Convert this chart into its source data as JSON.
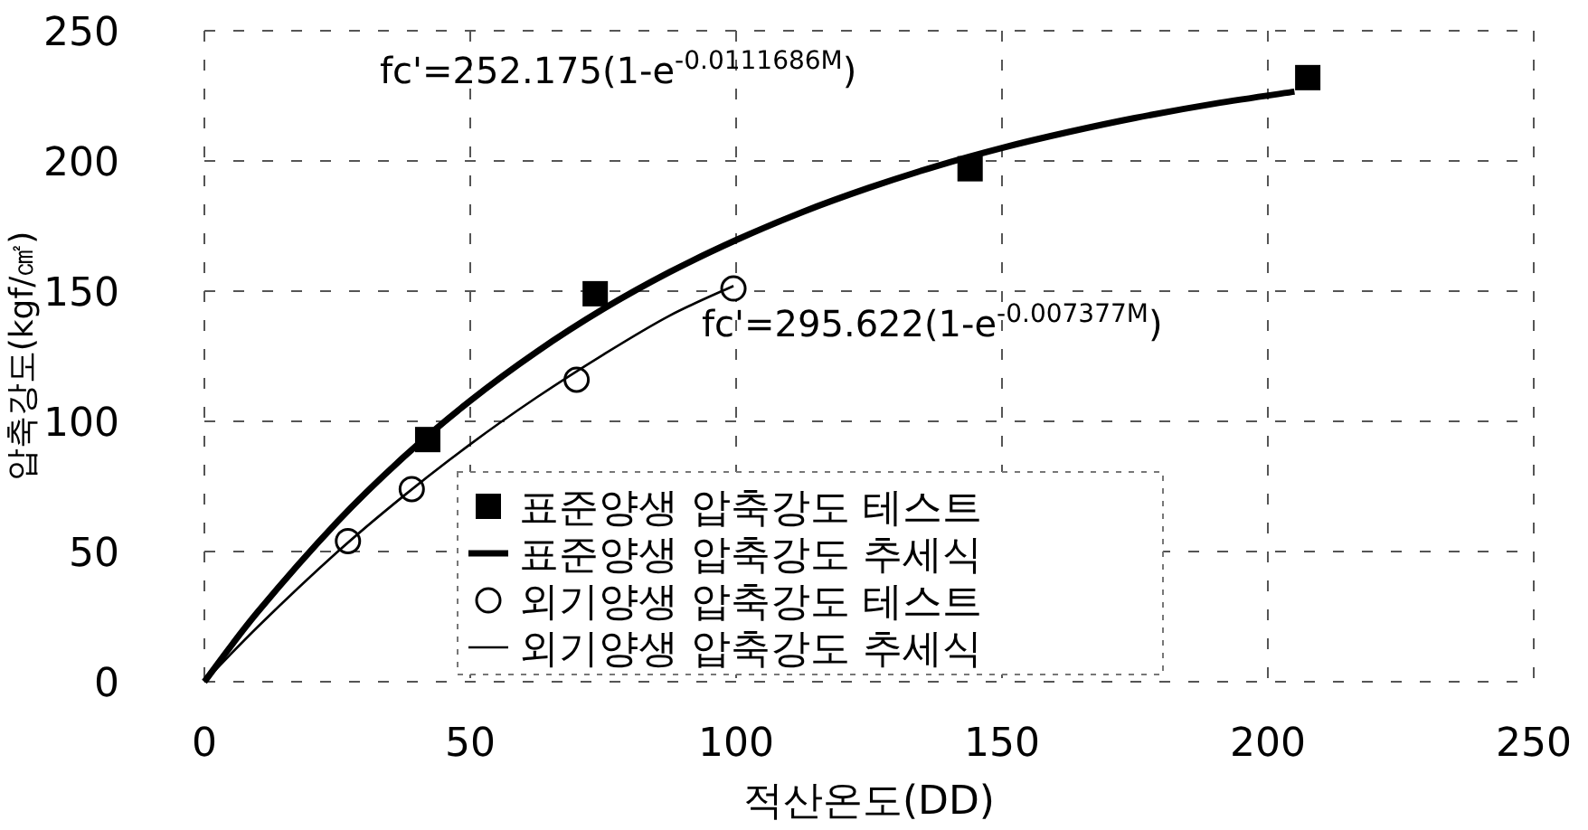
{
  "chart_data": {
    "type": "scatter",
    "xlabel": "적산온도(DD)",
    "ylabel": "압축강도(kgf/㎠)",
    "xlim": [
      0,
      250
    ],
    "ylim": [
      0,
      250
    ],
    "xticks": [
      0,
      50,
      100,
      150,
      200,
      250
    ],
    "yticks": [
      0,
      50,
      100,
      150,
      200,
      250
    ],
    "grid": true,
    "legend": "bottom",
    "series": [
      {
        "name": "표준양생 압축강도 테스트",
        "marker": "square",
        "color": "#000000",
        "x": [
          42,
          73.5,
          144,
          207.5
        ],
        "values": [
          93,
          149,
          197,
          232
        ]
      },
      {
        "name": "표준양생 압축강도 추세식",
        "type": "line",
        "marker": "none",
        "color": "#000000",
        "x": [
          0,
          10,
          25,
          37.5,
          50,
          62.5,
          75,
          87.5,
          100,
          112.5,
          125,
          137.5,
          150,
          162.5,
          175,
          190,
          205
        ],
        "values": [
          0,
          26.7,
          61.4,
          86.3,
          107.9,
          126.7,
          143.1,
          157.3,
          169.6,
          180.4,
          189.7,
          197.9,
          205.0,
          211.1,
          216.5,
          222.0,
          226.6
        ]
      },
      {
        "name": "외기양생 압축강도 테스트",
        "marker": "circle",
        "color": "#000000",
        "x": [
          27,
          39,
          70,
          99.5
        ],
        "values": [
          54,
          74,
          116,
          151
        ]
      },
      {
        "name": "외기양생 압축강도 추세식",
        "type": "line",
        "marker": "none",
        "color": "#000000",
        "x": [
          0,
          10,
          25,
          37.5,
          50,
          62.5,
          75,
          87.5,
          99.5
        ],
        "values": [
          0,
          21.0,
          49.8,
          71.4,
          91.2,
          109.2,
          125.6,
          140.6,
          152
        ]
      }
    ],
    "annotations": [
      "fc'=252.175(1-e$^{-0.0111686M}$)",
      "fc'=295.622(1-e$^{-0.007377M}$)"
    ]
  }
}
